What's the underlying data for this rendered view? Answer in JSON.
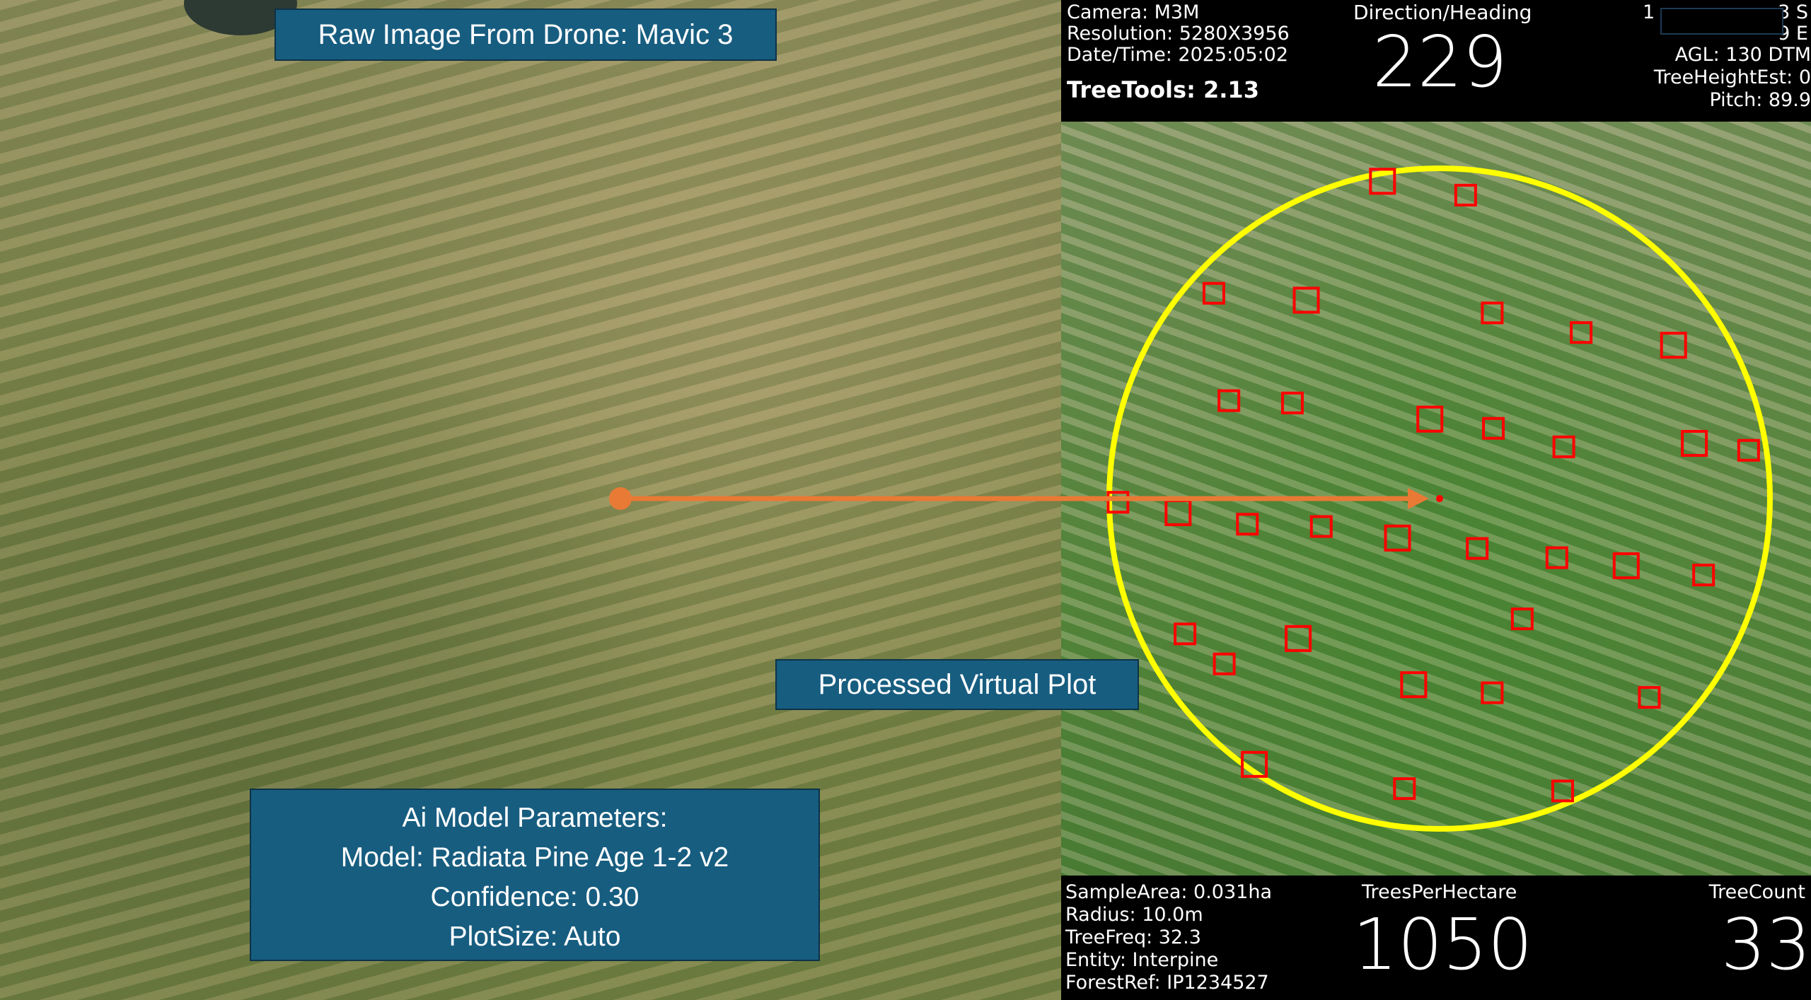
{
  "labels": {
    "raw": "Raw Image From Drone: Mavic 3",
    "processed": "Processed Virtual Plot",
    "ai": [
      "Ai Model Parameters:",
      "Model: Radiata Pine Age 1-2 v2",
      "Confidence: 0.30",
      "PlotSize:  Auto"
    ]
  },
  "top": {
    "camera": "Camera: M3M",
    "resolution": "Resolution: 5280X3956",
    "datetime": "Date/Time: 2025:05:02",
    "treetools": "TreeTools: 2.13",
    "heading_label": "Direction/Heading",
    "heading": "229",
    "lat_fragment": "1",
    "lat_suffix": "3 S",
    "lon_suffix": "9 E",
    "agl": "AGL: 130 DTM",
    "tree_height": "TreeHeightEst: 0",
    "pitch": "Pitch: 89.9"
  },
  "bottom": {
    "sample_area": "SampleArea: 0.031ha",
    "radius": "Radius: 10.0m",
    "tree_freq": "TreeFreq: 32.3",
    "entity": "Entity: Interpine",
    "forest_ref": "ForestRef: IP1234527",
    "tph_label": "TreesPerHectare",
    "tph": "1050",
    "count_label": "TreeCount",
    "count": "33"
  },
  "colors": {
    "plot_circle": "#ffff00",
    "detection_box": "#ff0000",
    "arrow": "#e87a35",
    "label_bg": "#175d80"
  }
}
